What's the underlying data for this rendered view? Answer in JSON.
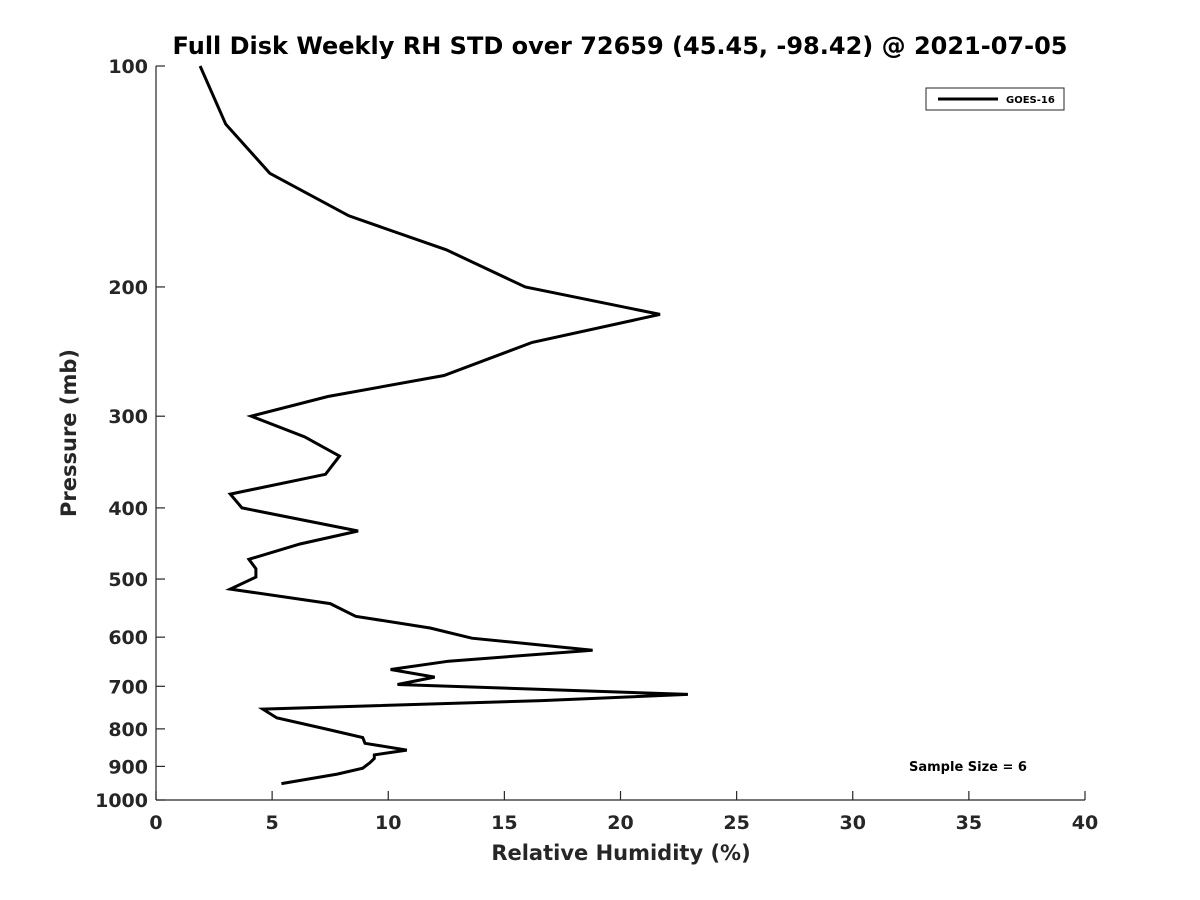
{
  "chart_data": {
    "type": "line",
    "title": "Full Disk Weekly RH STD over 72659 (45.45, -98.42) @ 2021-07-05",
    "xlabel": "Relative Humidity (%)",
    "ylabel": "Pressure (mb)",
    "xlim": [
      0,
      40
    ],
    "ylim": [
      100,
      1000
    ],
    "yscale": "log",
    "xticks": [
      0,
      5,
      10,
      15,
      20,
      25,
      30,
      35,
      40
    ],
    "yticks": [
      100,
      200,
      300,
      400,
      500,
      600,
      700,
      800,
      900,
      1000
    ],
    "grid": false,
    "legend_position": "top-right",
    "annotation": "Sample Size = 6",
    "series": [
      {
        "name": "GOES-16",
        "color": "#000000",
        "points": [
          [
            1.9,
            100
          ],
          [
            3.0,
            120
          ],
          [
            4.9,
            140
          ],
          [
            8.3,
            160
          ],
          [
            12.5,
            178
          ],
          [
            15.9,
            200
          ],
          [
            21.7,
            218
          ],
          [
            16.2,
            238
          ],
          [
            12.4,
            264
          ],
          [
            7.4,
            282
          ],
          [
            4.1,
            300
          ],
          [
            6.4,
            320
          ],
          [
            7.9,
            340
          ],
          [
            7.3,
            360
          ],
          [
            3.2,
            383
          ],
          [
            3.7,
            400
          ],
          [
            8.7,
            430
          ],
          [
            6.2,
            448
          ],
          [
            4.0,
            470
          ],
          [
            4.3,
            484
          ],
          [
            4.3,
            497
          ],
          [
            3.2,
            516
          ],
          [
            7.5,
            540
          ],
          [
            8.6,
            562
          ],
          [
            11.8,
            583
          ],
          [
            13.6,
            602
          ],
          [
            18.8,
            625
          ],
          [
            12.6,
            647
          ],
          [
            10.1,
            664
          ],
          [
            12.0,
            680
          ],
          [
            10.4,
            696
          ],
          [
            22.9,
            718
          ],
          [
            16.6,
            732
          ],
          [
            4.6,
            752
          ],
          [
            5.2,
            773
          ],
          [
            7.3,
            800
          ],
          [
            8.9,
            822
          ],
          [
            9.0,
            837
          ],
          [
            10.8,
            855
          ],
          [
            9.4,
            868
          ],
          [
            9.4,
            878
          ],
          [
            9.2,
            890
          ],
          [
            8.9,
            905
          ],
          [
            7.8,
            922
          ],
          [
            5.4,
            950
          ]
        ]
      }
    ]
  }
}
